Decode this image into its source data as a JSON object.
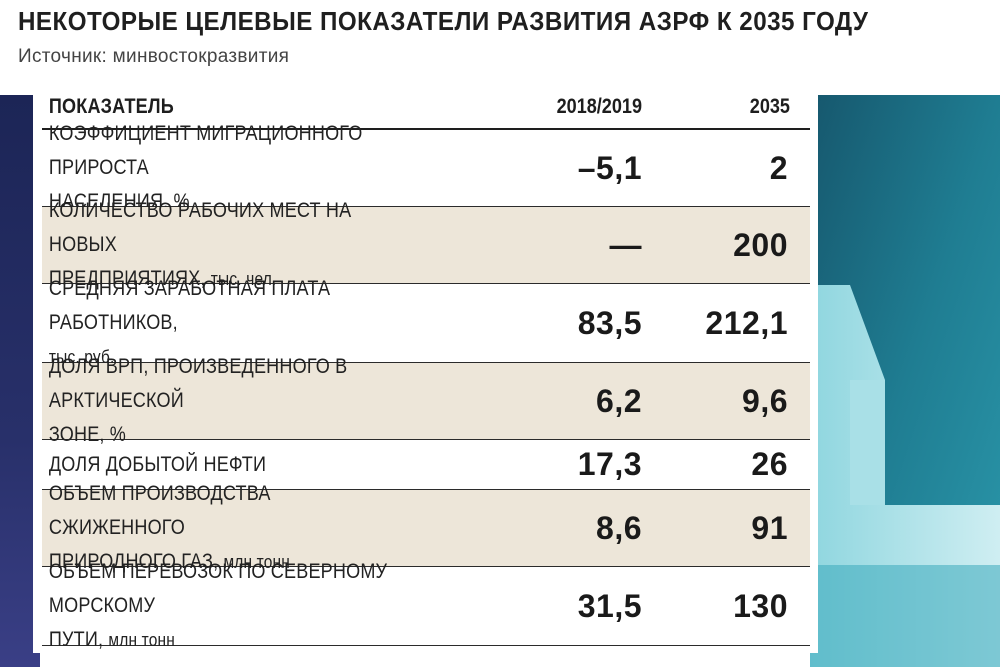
{
  "title": "НЕКОТОРЫЕ ЦЕЛЕВЫЕ ПОКАЗАТЕЛИ РАЗВИТИЯ АЗРФ К 2035 ГОДУ",
  "subtitle": "Источник: минвостокразвития",
  "colors": {
    "navy": "#1b2452",
    "teal": "#1e7288",
    "teal_light": "#5fc2cf",
    "row_shade": "#ede6d9"
  },
  "chart_data": {
    "type": "table",
    "columns": [
      "ПОКАЗАТЕЛЬ",
      "2018/2019",
      "2035"
    ],
    "rows": [
      {
        "label": "КОЭФФИЦИЕНТ МИГРАЦИОННОГО ПРИРОСТА",
        "label2": "НАСЕЛЕНИЯ, %",
        "v2019": "–5,1",
        "v2035": "2"
      },
      {
        "label": "КОЛИЧЕСТВО РАБОЧИХ МЕСТ НА НОВЫХ",
        "label2": "ПРЕДПРИЯТИЯХ, тыс. чел.",
        "v2019": "—",
        "v2035": "200"
      },
      {
        "label": "СРЕДНЯЯ ЗАРАБОТНАЯ ПЛАТА РАБОТНИКОВ,",
        "label2": "тыс. руб.",
        "v2019": "83,5",
        "v2035": "212,1"
      },
      {
        "label": "ДОЛЯ ВРП, ПРОИЗВЕДЕННОГО В АРКТИЧЕСКОЙ",
        "label2": "ЗОНЕ, %",
        "v2019": "6,2",
        "v2035": "9,6"
      },
      {
        "label": "ДОЛЯ ДОБЫТОЙ НЕФТИ",
        "label2": "",
        "v2019": "17,3",
        "v2035": "26"
      },
      {
        "label": "ОБЪЕМ ПРОИЗВОДСТВА СЖИЖЕННОГО",
        "label2": "ПРИРОДНОГО ГАЗ, млн тонн",
        "v2019": "8,6",
        "v2035": "91"
      },
      {
        "label": "ОБЪЕМ ПЕРЕВОЗОК ПО СЕВЕРНОМУ МОРСКОМУ",
        "label2": "ПУТИ, млн тонн",
        "v2019": "31,5",
        "v2035": "130"
      }
    ]
  }
}
